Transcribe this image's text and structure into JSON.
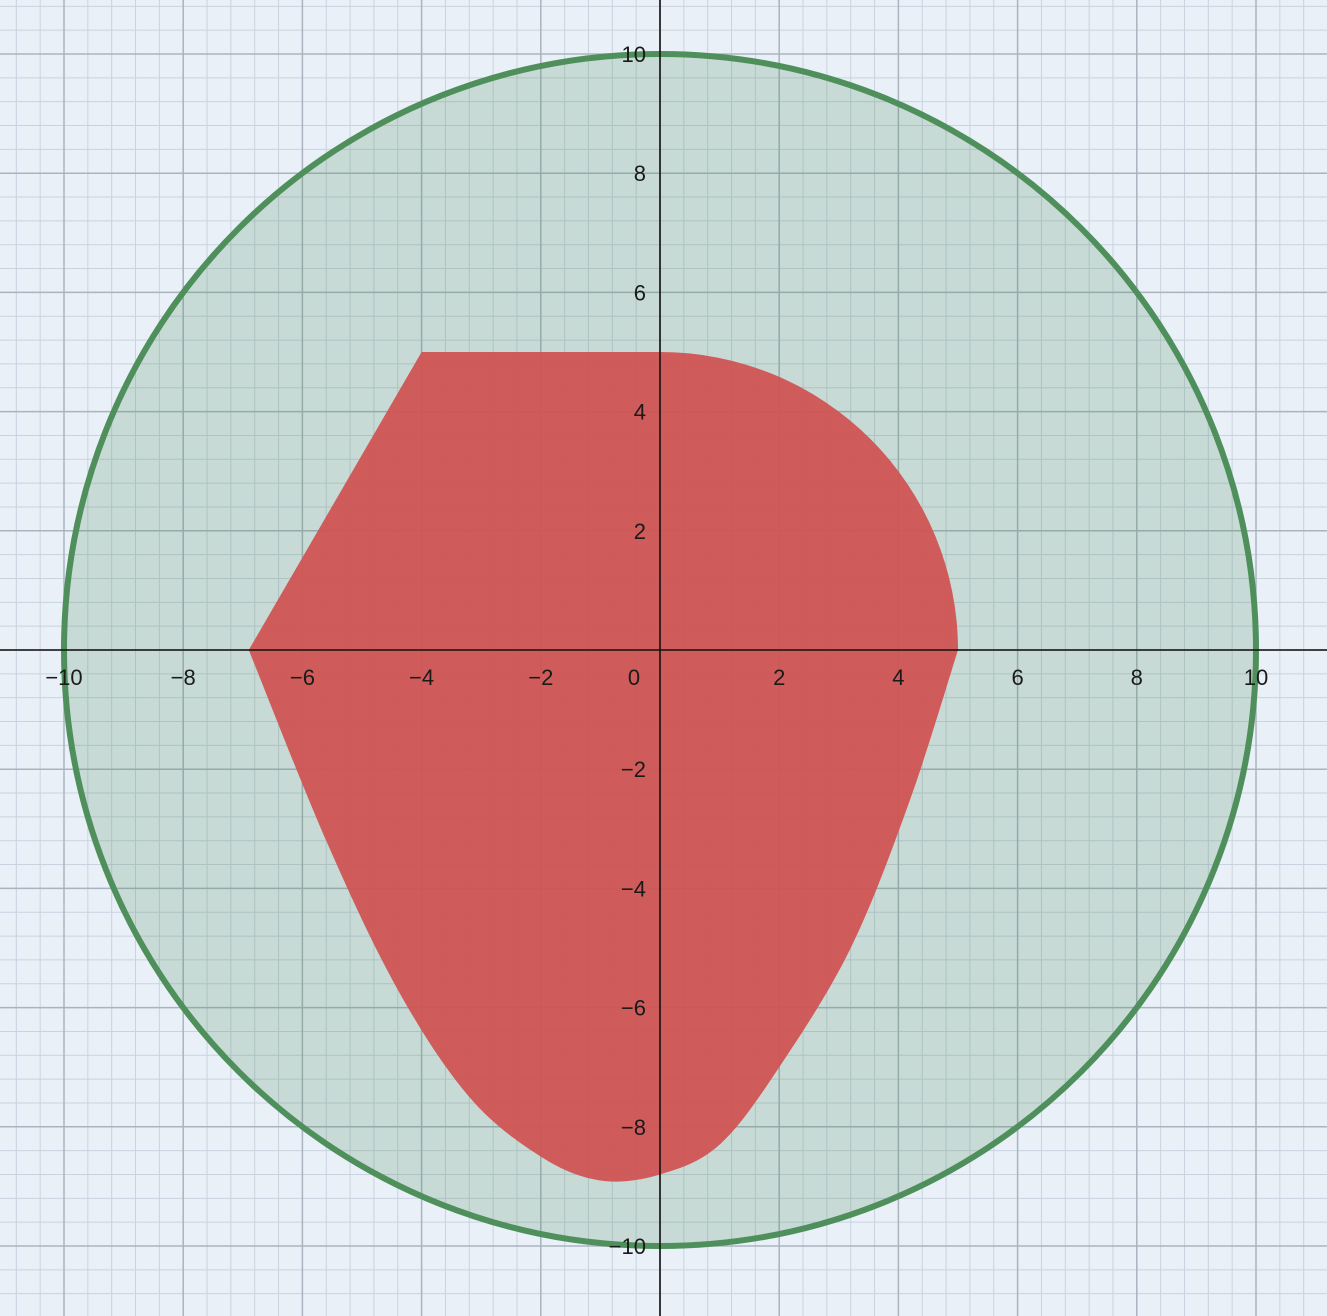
{
  "graph": {
    "x_range": [
      -11,
      11.2
    ],
    "y_range": [
      -11.1,
      10.9
    ],
    "minor_step": 0.4,
    "major_step": 2,
    "x_tick_labels": [
      "−10",
      "−8",
      "−6",
      "−4",
      "−2",
      "0",
      "2",
      "4",
      "6",
      "8",
      "10"
    ],
    "y_tick_labels": [
      "10",
      "8",
      "6",
      "4",
      "2",
      "−2",
      "−4",
      "−6",
      "−8",
      "−10"
    ],
    "x_tick_values": [
      -10,
      -8,
      -6,
      -4,
      -2,
      0,
      2,
      4,
      6,
      8,
      10
    ],
    "y_tick_values": [
      10,
      8,
      6,
      4,
      2,
      -2,
      -4,
      -6,
      -8,
      -10
    ]
  },
  "shapes": {
    "circle": {
      "center": [
        0,
        0
      ],
      "radius": 10,
      "stroke_color": "#4f8f5c",
      "fill_color": "#4f8f5c",
      "fill_opacity": 0.22
    },
    "region": {
      "fill_color": "#d05252",
      "vertices_polyline": [
        [
          -4,
          5
        ],
        [
          0,
          5
        ]
      ],
      "arc": {
        "center": [
          0,
          0
        ],
        "radius": 5,
        "from_deg": 90,
        "to_deg": 0
      },
      "lower_curve": [
        [
          5,
          0
        ],
        [
          4.2,
          -2.5
        ],
        [
          3.2,
          -5
        ],
        [
          2,
          -7
        ],
        [
          1,
          -8.3
        ],
        [
          0,
          -8.8
        ],
        [
          -1,
          -8.9
        ],
        [
          -2,
          -8.5
        ],
        [
          -3.2,
          -7.5
        ],
        [
          -4.4,
          -5.7
        ],
        [
          -5.6,
          -3.2
        ],
        [
          -6.9,
          0
        ]
      ],
      "upper_left_edge": [
        [
          -6.9,
          0
        ],
        [
          -4,
          5
        ]
      ]
    }
  }
}
